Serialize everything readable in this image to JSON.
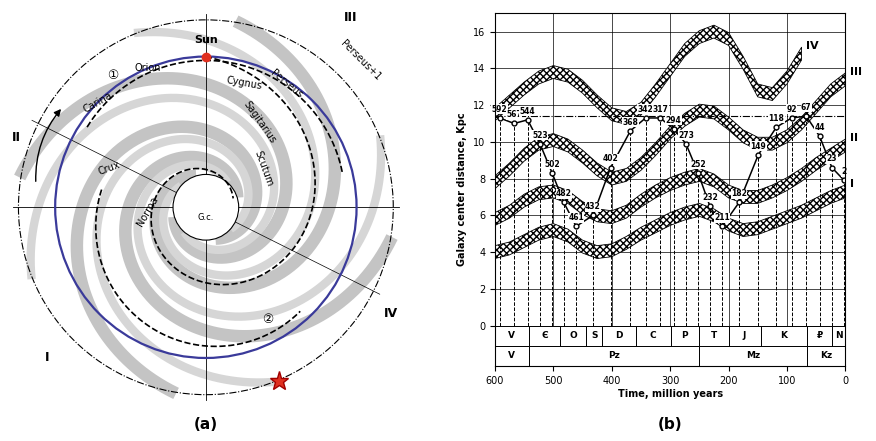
{
  "panel_a": {
    "caption": "(a)",
    "sun": "Sun",
    "galactic_center": "G.c.",
    "arms": [
      "Orion",
      "Cygnus",
      "Perseus",
      "Perseus+1",
      "Sagitarius",
      "Carina",
      "Scutum",
      "Crux",
      "Norma"
    ],
    "arm_numbers": [
      "I",
      "II",
      "III",
      "IV"
    ],
    "paths": [
      "①",
      "②"
    ]
  },
  "chart_data": {
    "type": "line",
    "caption": "(b)",
    "x_label": "Time, million years",
    "y_label": "Galaxy center distance, Kpc",
    "xlim": [
      600,
      0
    ],
    "ylim": [
      -2.2,
      17
    ],
    "xticks": [
      600,
      500,
      400,
      300,
      200,
      100,
      0
    ],
    "yticks": [
      0,
      2,
      4,
      6,
      8,
      10,
      12,
      14,
      16
    ],
    "grid": true,
    "reference_line": 11.4,
    "bands_x": [
      600,
      575,
      550,
      525,
      500,
      475,
      450,
      425,
      400,
      375,
      350,
      325,
      300,
      275,
      250,
      225,
      200,
      175,
      150,
      125,
      100,
      75,
      50,
      25,
      0
    ],
    "series": [
      {
        "name": "I",
        "values": [
          4.0,
          4.2,
          4.6,
          5.0,
          5.2,
          4.9,
          4.3,
          4.0,
          4.1,
          4.5,
          5.0,
          5.4,
          5.8,
          6.1,
          6.3,
          6.0,
          5.5,
          5.2,
          5.3,
          5.6,
          5.9,
          6.2,
          6.6,
          7.0,
          7.3
        ]
      },
      {
        "name": "II",
        "values": [
          5.8,
          6.2,
          6.8,
          7.2,
          7.3,
          7.0,
          6.4,
          6.0,
          5.9,
          6.2,
          6.8,
          7.3,
          7.7,
          8.0,
          8.2,
          7.9,
          7.3,
          7.0,
          7.0,
          7.3,
          7.7,
          8.2,
          8.8,
          9.3,
          9.8
        ]
      },
      {
        "name": "III",
        "values": [
          7.8,
          8.5,
          9.3,
          9.9,
          10.1,
          9.8,
          9.2,
          8.5,
          8.0,
          8.2,
          8.8,
          9.6,
          10.5,
          11.2,
          11.7,
          11.6,
          11.0,
          10.3,
          9.9,
          9.9,
          10.3,
          11.0,
          11.9,
          12.8,
          13.4
        ]
      },
      {
        "name": "IV",
        "values": [
          11.5,
          12.2,
          12.9,
          13.5,
          13.8,
          13.6,
          13.0,
          12.2,
          11.5,
          11.3,
          11.8,
          12.8,
          13.9,
          15.0,
          15.7,
          16.0,
          15.6,
          14.3,
          12.8,
          12.6,
          13.5,
          14.8,
          null,
          null,
          null
        ]
      }
    ],
    "trajectory": {
      "x": [
        592,
        567,
        544,
        523,
        502,
        482,
        461,
        432,
        402,
        368,
        342,
        317,
        294,
        273,
        252,
        232,
        211,
        182,
        149,
        118,
        92,
        67,
        44,
        23,
        2
      ],
      "values": [
        11.3,
        11.0,
        11.2,
        9.9,
        8.3,
        6.7,
        5.4,
        6.0,
        8.6,
        10.6,
        11.3,
        11.3,
        10.7,
        9.9,
        8.3,
        6.5,
        5.4,
        6.7,
        9.3,
        10.8,
        11.3,
        11.4,
        10.3,
        8.6,
        7.9
      ],
      "data_labels": true,
      "marker": "circle",
      "color": "#000000"
    },
    "periods": [
      {
        "label": "V",
        "start": 600,
        "end": 542
      },
      {
        "label": "Є",
        "start": 542,
        "end": 488
      },
      {
        "label": "O",
        "start": 488,
        "end": 444
      },
      {
        "label": "S",
        "start": 444,
        "end": 416
      },
      {
        "label": "D",
        "start": 416,
        "end": 359
      },
      {
        "label": "C",
        "start": 359,
        "end": 299
      },
      {
        "label": "P",
        "start": 299,
        "end": 251
      },
      {
        "label": "T",
        "start": 251,
        "end": 200
      },
      {
        "label": "J",
        "start": 200,
        "end": 145
      },
      {
        "label": "K",
        "start": 145,
        "end": 65
      },
      {
        "label": "₽",
        "start": 65,
        "end": 23
      },
      {
        "label": "N",
        "start": 23,
        "end": 0
      }
    ],
    "eras": [
      {
        "label": "V",
        "start": 600,
        "end": 542
      },
      {
        "label": "Pz",
        "start": 542,
        "end": 251
      },
      {
        "label": "Mz",
        "start": 251,
        "end": 65
      },
      {
        "label": "Kz",
        "start": 65,
        "end": 0
      }
    ]
  }
}
